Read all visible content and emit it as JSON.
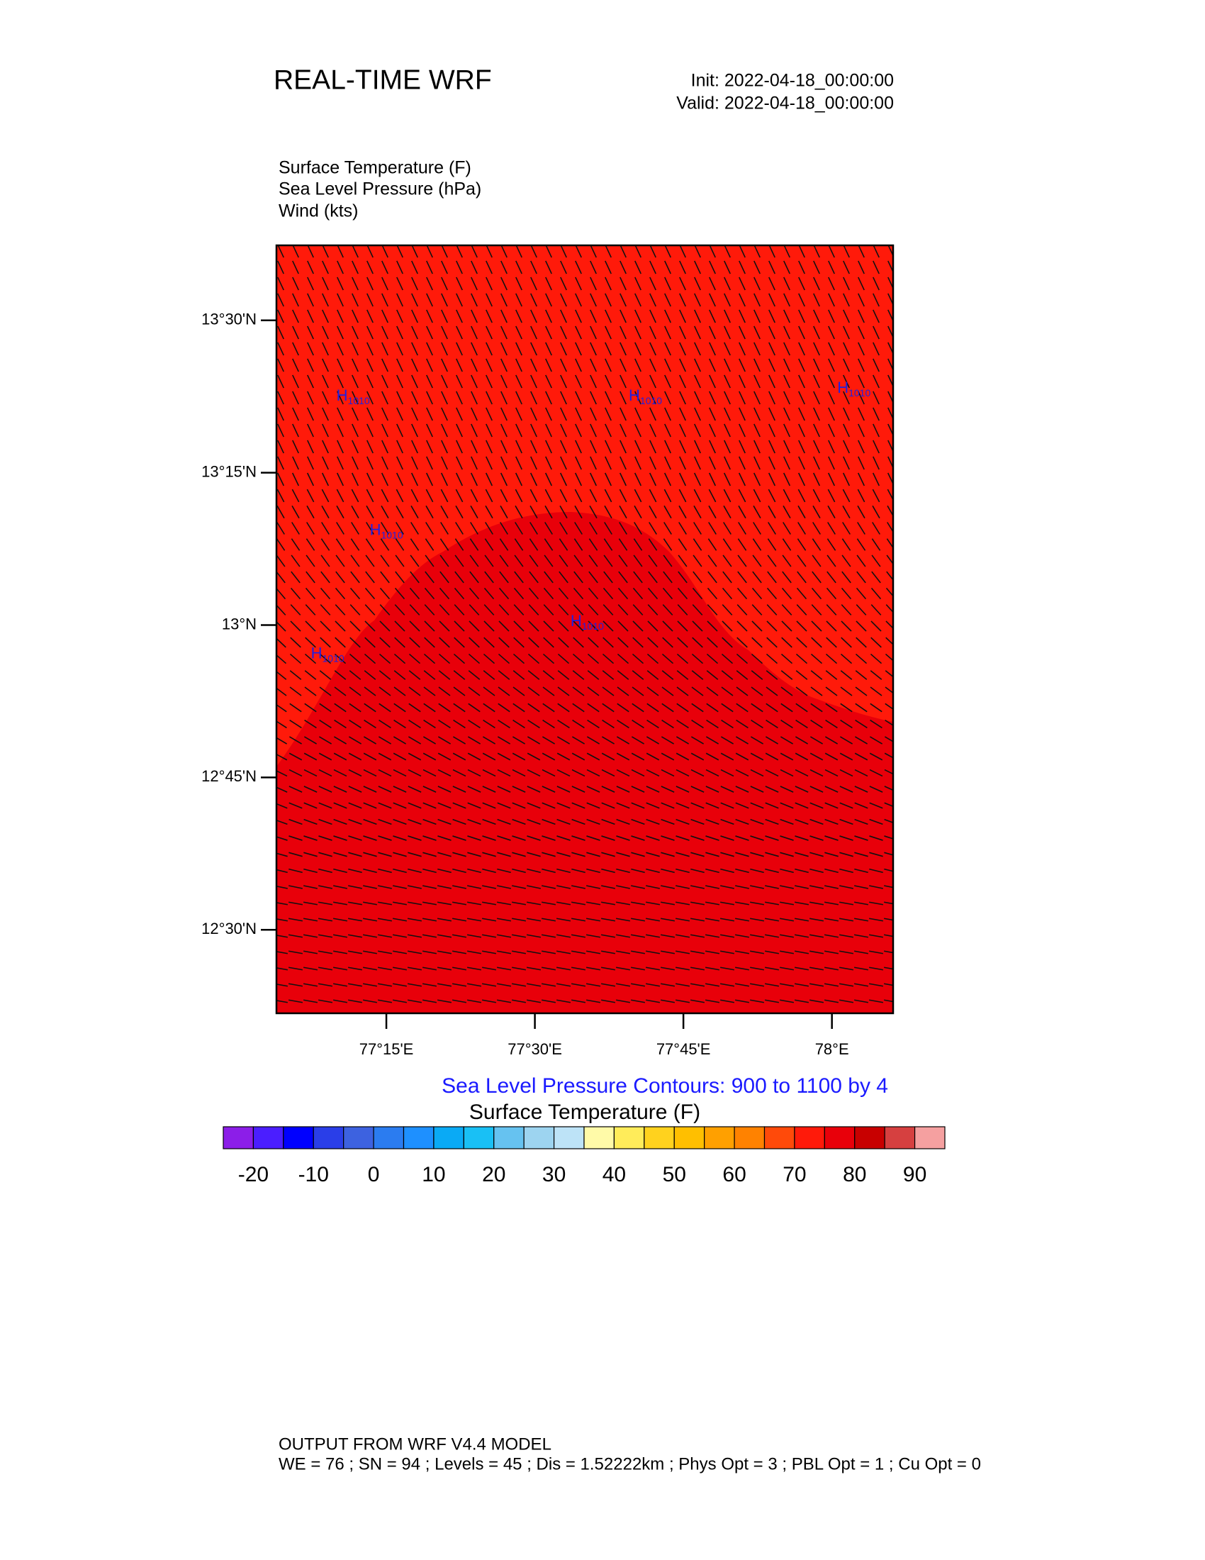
{
  "header": {
    "title": "REAL-TIME WRF",
    "init": "Init: 2022-04-18_00:00:00",
    "valid": "Valid: 2022-04-18_00:00:00"
  },
  "chart_data": {
    "type": "map",
    "fields": [
      "Surface Temperature   (F)",
      "Sea Level Pressure   (hPa)",
      "Wind   (kts)"
    ],
    "xlim": [
      77.065,
      78.103
    ],
    "ylim": [
      12.363,
      13.623
    ],
    "yticks": [
      {
        "value": 13.5,
        "label": "13°30'N"
      },
      {
        "value": 13.25,
        "label": "13°15'N"
      },
      {
        "value": 13,
        "label": "13°N"
      },
      {
        "value": 12.75,
        "label": "12°45'N"
      },
      {
        "value": 12.5,
        "label": "12°30'N"
      }
    ],
    "xticks": [
      {
        "value": 77.25,
        "label": "77°15'E"
      },
      {
        "value": 77.5,
        "label": "77°30'E"
      },
      {
        "value": 77.75,
        "label": "77°45'E"
      },
      {
        "value": 78,
        "label": "78°E"
      }
    ],
    "highs": [
      {
        "letter": "H",
        "value": 1010,
        "lon": 77.166,
        "lat": 13.375
      },
      {
        "letter": "H",
        "value": 1010,
        "lon": 77.658,
        "lat": 13.375
      },
      {
        "letter": "H",
        "value": 1010,
        "lon": 78.009,
        "lat": 13.388
      },
      {
        "letter": "H",
        "value": 1010,
        "lon": 77.222,
        "lat": 13.155
      },
      {
        "letter": "H",
        "value": 1010,
        "lon": 77.56,
        "lat": 13.005
      },
      {
        "letter": "H",
        "value": 1010,
        "lon": 77.123,
        "lat": 12.952
      }
    ],
    "contour_note": "Sea Level Pressure Contours: 900 to 1100 by 4",
    "colorbar": {
      "title": "Surface Temperature  (F)",
      "range": [
        -25,
        95
      ],
      "ticks": [
        -20,
        -10,
        0,
        10,
        20,
        30,
        40,
        50,
        60,
        70,
        80,
        90
      ],
      "colors": [
        "#8c1ee8",
        "#4b1eff",
        "#0000ff",
        "#2a3ee8",
        "#3d62e0",
        "#2b7cf0",
        "#1e90ff",
        "#0aaaf5",
        "#19c0f5",
        "#66c2f0",
        "#9dd4f0",
        "#bde3f7",
        "#fffaa8",
        "#ffec5a",
        "#ffd21e",
        "#ffbf00",
        "#ffa000",
        "#ff8200",
        "#ff4a0a",
        "#ff1a0a",
        "#e8000a",
        "#c80000",
        "#d64040",
        "#f5a0a0"
      ]
    }
  },
  "footer": {
    "line1": "OUTPUT FROM WRF V4.4 MODEL",
    "line2": "WE = 76 ; SN = 94 ; Levels = 45 ; Dis = 1.52222km ; Phys Opt = 3 ; PBL Opt = 1 ; Cu Opt = 0"
  }
}
